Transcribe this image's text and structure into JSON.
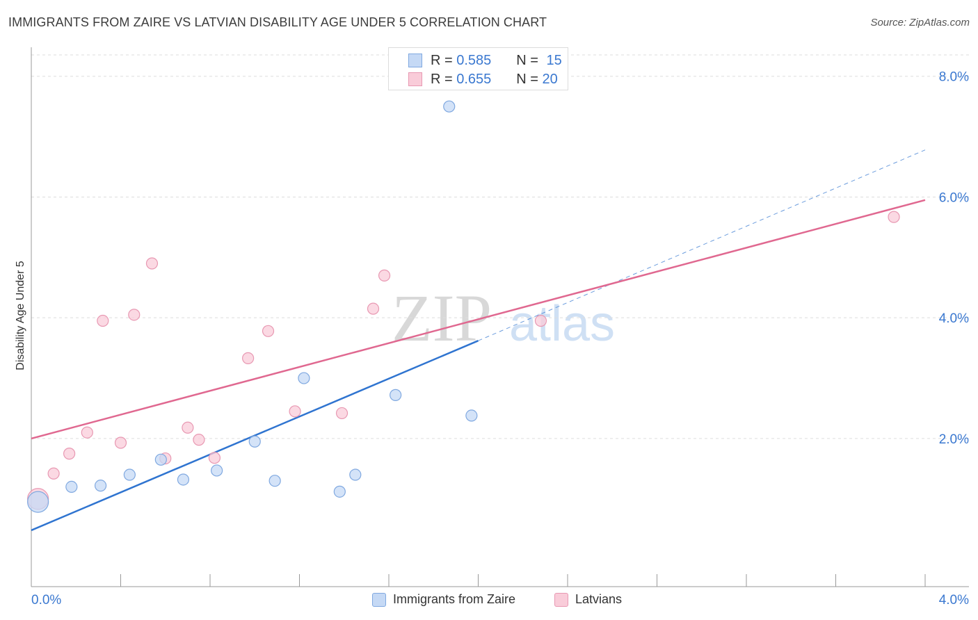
{
  "header": {
    "title": "IMMIGRANTS FROM ZAIRE VS LATVIAN DISABILITY AGE UNDER 5 CORRELATION CHART",
    "source": "Source: ZipAtlas.com"
  },
  "colors": {
    "blue_fill": "#c5d9f5",
    "blue_stroke": "#7fa8e0",
    "blue_line": "#2f74d0",
    "pink_fill": "#f9ccd9",
    "pink_stroke": "#e898b2",
    "pink_line": "#e06890",
    "grid": "#dddddd",
    "tick_text": "#3a78d0"
  },
  "legend": {
    "r_label": "R = ",
    "n_label": "N = ",
    "entries": [
      {
        "r": "0.585",
        "n": "15"
      },
      {
        "r": "0.655",
        "n": "20"
      }
    ]
  },
  "watermark": {
    "zip": "ZIP",
    "atlas": "atlas"
  },
  "chart_data": {
    "type": "scatter",
    "title": "IMMIGRANTS FROM ZAIRE VS LATVIAN DISABILITY AGE UNDER 5 CORRELATION CHART",
    "xlabel": "",
    "ylabel": "Disability Age Under 5",
    "xlim": [
      0,
      4
    ],
    "ylim": [
      -0.2,
      8.4
    ],
    "x_tick_labels": [
      "0.0%",
      "4.0%"
    ],
    "y_ticks": [
      2,
      4,
      6,
      8
    ],
    "y_tick_labels": [
      "2.0%",
      "4.0%",
      "6.0%",
      "8.0%"
    ],
    "series": [
      {
        "name": "Immigrants from Zaire",
        "points": [
          {
            "x": 0.03,
            "y": 0.95,
            "big": true
          },
          {
            "x": 0.18,
            "y": 1.2
          },
          {
            "x": 0.31,
            "y": 1.22
          },
          {
            "x": 0.44,
            "y": 1.4
          },
          {
            "x": 0.58,
            "y": 1.65
          },
          {
            "x": 0.68,
            "y": 1.32
          },
          {
            "x": 0.83,
            "y": 1.47
          },
          {
            "x": 1.0,
            "y": 1.95
          },
          {
            "x": 1.09,
            "y": 1.3
          },
          {
            "x": 1.22,
            "y": 3.0
          },
          {
            "x": 1.38,
            "y": 1.12
          },
          {
            "x": 1.45,
            "y": 1.4
          },
          {
            "x": 1.63,
            "y": 2.72
          },
          {
            "x": 1.87,
            "y": 7.5
          },
          {
            "x": 1.97,
            "y": 2.38
          }
        ],
        "trend": {
          "x0": 0.0,
          "y0": 0.48,
          "x1": 2.0,
          "y1": 3.62
        },
        "trend_extension": {
          "x0": 2.0,
          "y0": 3.62,
          "x1": 4.0,
          "y1": 6.78
        }
      },
      {
        "name": "Latvians",
        "points": [
          {
            "x": 0.03,
            "y": 1.0,
            "big": true
          },
          {
            "x": 0.1,
            "y": 1.42
          },
          {
            "x": 0.17,
            "y": 1.75
          },
          {
            "x": 0.25,
            "y": 2.1
          },
          {
            "x": 0.32,
            "y": 3.95
          },
          {
            "x": 0.4,
            "y": 1.93
          },
          {
            "x": 0.46,
            "y": 4.05
          },
          {
            "x": 0.54,
            "y": 4.9
          },
          {
            "x": 0.6,
            "y": 1.67
          },
          {
            "x": 0.7,
            "y": 2.18
          },
          {
            "x": 0.75,
            "y": 1.98
          },
          {
            "x": 0.82,
            "y": 1.68
          },
          {
            "x": 0.97,
            "y": 3.33
          },
          {
            "x": 1.06,
            "y": 3.78
          },
          {
            "x": 1.18,
            "y": 2.45
          },
          {
            "x": 1.39,
            "y": 2.42
          },
          {
            "x": 1.53,
            "y": 4.15
          },
          {
            "x": 1.58,
            "y": 4.7
          },
          {
            "x": 2.28,
            "y": 3.95
          },
          {
            "x": 3.86,
            "y": 5.67
          }
        ],
        "trend": {
          "x0": 0.0,
          "y0": 2.0,
          "x1": 4.0,
          "y1": 5.95
        }
      }
    ]
  }
}
